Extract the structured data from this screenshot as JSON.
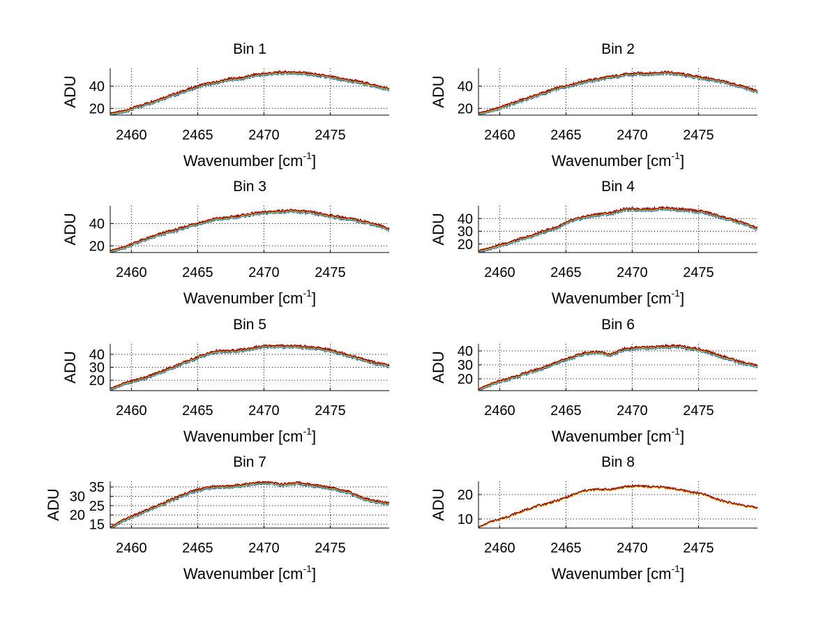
{
  "chart_data": [
    {
      "type": "line",
      "title": "Bin 1",
      "xlabel": "Wavenumber [cm",
      "xlabel_sup": "-1",
      "xlabel_end": "]",
      "ylabel": "ADU",
      "xlim": [
        2458.4,
        2479.45
      ],
      "ylim": [
        14,
        56
      ],
      "xticks": [
        2460,
        2465,
        2470,
        2475
      ],
      "yticks": [
        20,
        40
      ],
      "grid": true,
      "x": [
        2458.4,
        2459.4,
        2460.4,
        2461.4,
        2462.4,
        2463.4,
        2464.4,
        2465.4,
        2466.4,
        2467.4,
        2468.4,
        2469.4,
        2470.4,
        2471.4,
        2472.4,
        2473.4,
        2474.4,
        2475.4,
        2476.4,
        2477.4,
        2478.4,
        2479.4
      ],
      "values": [
        15,
        17,
        21,
        25,
        29,
        33,
        37,
        41,
        43,
        46,
        47,
        50,
        51,
        52,
        52,
        51,
        49,
        47,
        45,
        43,
        40,
        37
      ]
    },
    {
      "type": "line",
      "title": "Bin 2",
      "xlabel": "Wavenumber [cm",
      "xlabel_sup": "-1",
      "xlabel_end": "]",
      "ylabel": "ADU",
      "xlim": [
        2458.4,
        2479.45
      ],
      "ylim": [
        14,
        56
      ],
      "xticks": [
        2460,
        2465,
        2470,
        2475
      ],
      "yticks": [
        20,
        40
      ],
      "grid": true,
      "x": [
        2458.4,
        2459.4,
        2460.4,
        2461.4,
        2462.4,
        2463.4,
        2464.4,
        2465.4,
        2466.4,
        2467.4,
        2468.4,
        2469.4,
        2470.4,
        2471.4,
        2472.4,
        2473.4,
        2474.4,
        2475.4,
        2476.4,
        2477.4,
        2478.4,
        2479.4
      ],
      "values": [
        15,
        18,
        22,
        26,
        30,
        34,
        38,
        41,
        44,
        46,
        48,
        50,
        51,
        51,
        52,
        51,
        49,
        47,
        45,
        42,
        39,
        35
      ]
    },
    {
      "type": "line",
      "title": "Bin 3",
      "xlabel": "Wavenumber [cm",
      "xlabel_sup": "-1",
      "xlabel_end": "]",
      "ylabel": "ADU",
      "xlim": [
        2458.4,
        2479.45
      ],
      "ylim": [
        14,
        56
      ],
      "xticks": [
        2460,
        2465,
        2470,
        2475
      ],
      "yticks": [
        20,
        40
      ],
      "grid": true,
      "x": [
        2458.4,
        2459.4,
        2460.4,
        2461.4,
        2462.4,
        2463.4,
        2464.4,
        2465.4,
        2466.4,
        2467.4,
        2468.4,
        2469.4,
        2470.4,
        2471.4,
        2472.4,
        2473.4,
        2474.4,
        2475.4,
        2476.4,
        2477.4,
        2478.4,
        2479.4
      ],
      "values": [
        15,
        18,
        23,
        27,
        31,
        34,
        38,
        41,
        44,
        45,
        47,
        49,
        50,
        51,
        51,
        50,
        48,
        46,
        44,
        42,
        39,
        35
      ]
    },
    {
      "type": "line",
      "title": "Bin 4",
      "xlabel": "Wavenumber [cm",
      "xlabel_sup": "-1",
      "xlabel_end": "]",
      "ylabel": "ADU",
      "xlim": [
        2458.4,
        2479.45
      ],
      "ylim": [
        13.3,
        50
      ],
      "xticks": [
        2460,
        2465,
        2470,
        2475
      ],
      "yticks": [
        20,
        30,
        40
      ],
      "grid": true,
      "x": [
        2458.4,
        2459.4,
        2460.4,
        2461.4,
        2462.4,
        2463.4,
        2464.4,
        2465.4,
        2466.4,
        2467.4,
        2468.4,
        2469.4,
        2470.4,
        2471.4,
        2472.4,
        2473.4,
        2474.4,
        2475.4,
        2476.4,
        2477.4,
        2478.4,
        2479.4
      ],
      "values": [
        14,
        17,
        20,
        23,
        26,
        30,
        33,
        38,
        41,
        43,
        44,
        47,
        47,
        47,
        48,
        47,
        46,
        45,
        42,
        39,
        36,
        32
      ]
    },
    {
      "type": "line",
      "title": "Bin 5",
      "xlabel": "Wavenumber [cm",
      "xlabel_sup": "-1",
      "xlabel_end": "]",
      "ylabel": "ADU",
      "xlim": [
        2458.4,
        2479.45
      ],
      "ylim": [
        12,
        48
      ],
      "xticks": [
        2460,
        2465,
        2470,
        2475
      ],
      "yticks": [
        20,
        30,
        40
      ],
      "grid": true,
      "x": [
        2458.4,
        2459.4,
        2460.4,
        2461.4,
        2462.4,
        2463.4,
        2464.4,
        2465.4,
        2466.4,
        2467.4,
        2468.4,
        2469.4,
        2470.4,
        2471.4,
        2472.4,
        2473.4,
        2474.4,
        2475.4,
        2476.4,
        2477.4,
        2478.4,
        2479.4
      ],
      "values": [
        13,
        17,
        20,
        23,
        27,
        31,
        35,
        39,
        42,
        42,
        43,
        45,
        46,
        46,
        46,
        45,
        44,
        42,
        39,
        36,
        33,
        31
      ]
    },
    {
      "type": "line",
      "title": "Bin 6",
      "xlabel": "Wavenumber [cm",
      "xlabel_sup": "-1",
      "xlabel_end": "]",
      "ylabel": "ADU",
      "xlim": [
        2458.4,
        2479.45
      ],
      "ylim": [
        11.5,
        45
      ],
      "xticks": [
        2460,
        2465,
        2470,
        2475
      ],
      "yticks": [
        20,
        30,
        40
      ],
      "grid": true,
      "x": [
        2458.4,
        2459.4,
        2460.4,
        2461.4,
        2462.4,
        2463.4,
        2464.4,
        2465.4,
        2466.4,
        2467.4,
        2468.4,
        2469.4,
        2470.4,
        2471.4,
        2472.4,
        2473.4,
        2474.4,
        2475.4,
        2476.4,
        2477.4,
        2478.4,
        2479.4
      ],
      "values": [
        12,
        16,
        19,
        22,
        25,
        28,
        32,
        35,
        38,
        39,
        37,
        41,
        42,
        42,
        43,
        43,
        42,
        40,
        37,
        34,
        31,
        29
      ]
    },
    {
      "type": "line",
      "title": "Bin 7",
      "xlabel": "Wavenumber [cm",
      "xlabel_sup": "-1",
      "xlabel_end": "]",
      "ylabel": "ADU",
      "xlim": [
        2458.4,
        2479.45
      ],
      "ylim": [
        13,
        38
      ],
      "xticks": [
        2460,
        2465,
        2470,
        2475
      ],
      "yticks": [
        15,
        20,
        25,
        30,
        35
      ],
      "grid": true,
      "x": [
        2458.4,
        2459.4,
        2460.4,
        2461.4,
        2462.4,
        2463.4,
        2464.4,
        2465.4,
        2466.4,
        2467.4,
        2468.4,
        2469.4,
        2470.4,
        2471.4,
        2472.4,
        2473.4,
        2474.4,
        2475.4,
        2476.4,
        2477.4,
        2478.4,
        2479.4
      ],
      "values": [
        13,
        17,
        20,
        23,
        26,
        29,
        32,
        34,
        35,
        35,
        36,
        37,
        37,
        36,
        37,
        36,
        35,
        34,
        32,
        29,
        27,
        26
      ]
    },
    {
      "type": "line",
      "title": "Bin 8",
      "xlabel": "Wavenumber [cm",
      "xlabel_sup": "-1",
      "xlabel_end": "]",
      "ylabel": "ADU",
      "xlim": [
        2458.4,
        2479.45
      ],
      "ylim": [
        6.3,
        25.4
      ],
      "xticks": [
        2460,
        2465,
        2470,
        2475
      ],
      "yticks": [
        10,
        20
      ],
      "grid": true,
      "x": [
        2458.4,
        2459.4,
        2460.4,
        2461.4,
        2462.4,
        2463.4,
        2464.4,
        2465.4,
        2466.4,
        2467.4,
        2468.4,
        2469.4,
        2470.4,
        2471.4,
        2472.4,
        2473.4,
        2474.4,
        2475.4,
        2476.4,
        2477.4,
        2478.4,
        2479.4
      ],
      "values": [
        6.5,
        9,
        10.5,
        12.5,
        14.5,
        16,
        17.5,
        19.5,
        21.5,
        22,
        22,
        23,
        23.5,
        23,
        23,
        22,
        21,
        20,
        18,
        16.5,
        15.5,
        14.5
      ],
      "series_colors": [
        "#ffcc00",
        "#ff8000",
        "#cc2200",
        "#800000"
      ]
    }
  ],
  "series_colors": [
    "#0000cc",
    "#00aaff",
    "#00cc66",
    "#ffdd00",
    "#ff8000",
    "#ee0000",
    "#800000"
  ]
}
